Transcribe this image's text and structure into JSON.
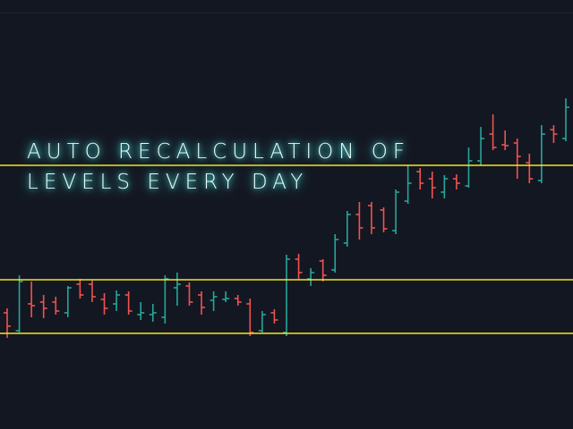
{
  "chart_data": {
    "type": "ohlc",
    "title": [
      "AUTO RECALCULATION OF",
      "LEVELS EVERY DAY"
    ],
    "open": [
      130,
      110,
      140,
      142,
      142,
      130,
      162,
      162,
      145,
      140,
      150,
      128,
      128,
      125,
      158,
      160,
      150,
      144,
      145,
      146,
      140,
      110,
      130,
      108,
      190,
      168,
      188,
      178,
      208,
      240,
      250,
      245,
      222,
      255,
      288,
      280,
      265,
      280,
      272,
      300,
      330,
      318,
      320,
      298,
      278,
      335,
      325
    ],
    "high": [
      135,
      172,
      165,
      150,
      148,
      160,
      168,
      166,
      152,
      155,
      154,
      142,
      140,
      172,
      175,
      164,
      154,
      154,
      154,
      150,
      146,
      132,
      134,
      195,
      196,
      180,
      190,
      218,
      244,
      254,
      254,
      248,
      268,
      295,
      292,
      288,
      284,
      285,
      315,
      338,
      352,
      334,
      325,
      308,
      340,
      340,
      370
    ],
    "low": [
      102,
      108,
      125,
      124,
      128,
      125,
      146,
      142,
      128,
      132,
      128,
      122,
      120,
      118,
      138,
      138,
      128,
      132,
      142,
      138,
      104,
      108,
      118,
      104,
      168,
      160,
      165,
      175,
      204,
      212,
      218,
      220,
      218,
      252,
      268,
      258,
      258,
      268,
      270,
      295,
      312,
      312,
      280,
      275,
      275,
      320,
      322
    ],
    "close": [
      115,
      165,
      138,
      135,
      132,
      158,
      150,
      148,
      135,
      150,
      132,
      130,
      130,
      168,
      162,
      142,
      136,
      148,
      146,
      142,
      108,
      128,
      122,
      190,
      175,
      175,
      172,
      212,
      240,
      225,
      225,
      224,
      265,
      275,
      275,
      270,
      280,
      275,
      300,
      325,
      315,
      317,
      305,
      280,
      330,
      330,
      360
    ],
    "up_color": "#26a69a",
    "down_color": "#ef5350",
    "levels": [
      295,
      167,
      107
    ],
    "level_color": "#f5e61e",
    "ylim": [
      0,
      480
    ]
  }
}
